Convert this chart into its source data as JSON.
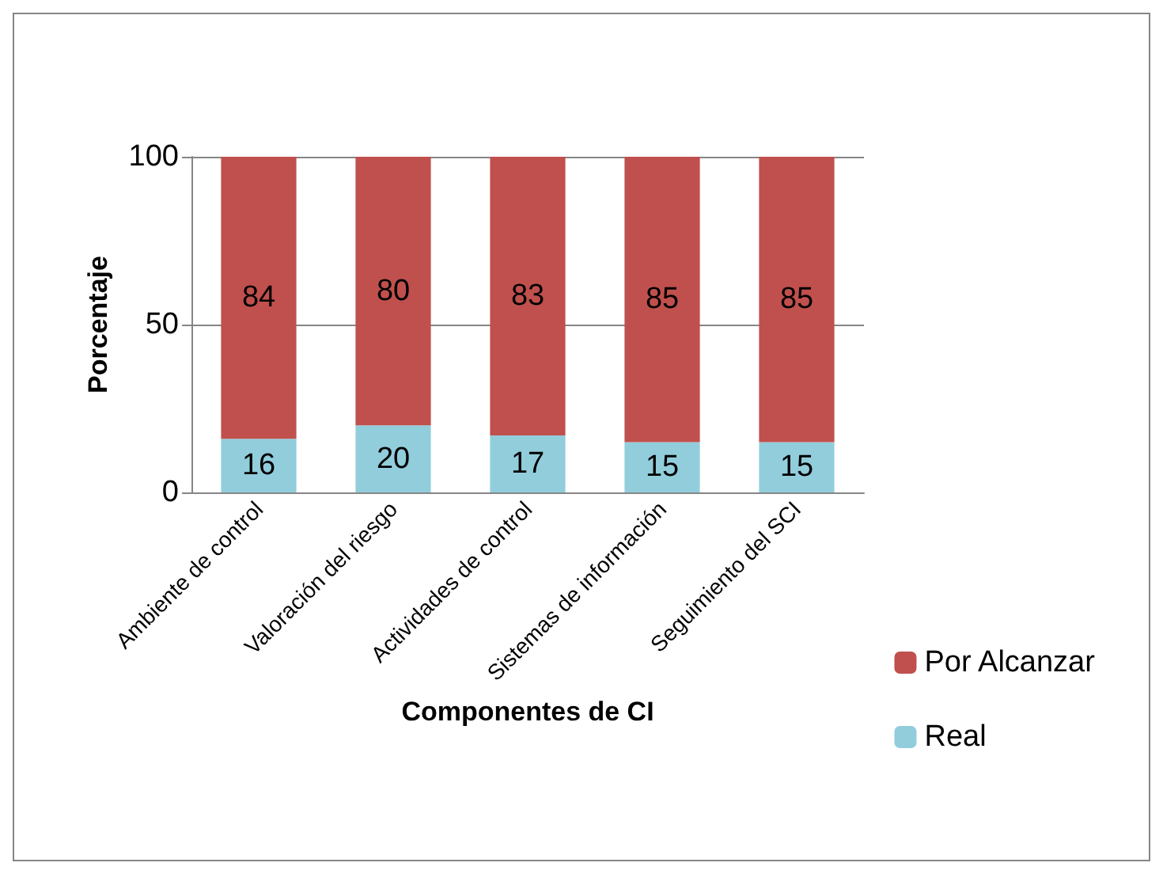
{
  "chart_data": {
    "type": "bar",
    "stacked": true,
    "xlabel": "Componentes de CI",
    "ylabel": "Porcentaje",
    "categories": [
      "Ambiente de control",
      "Valoración del riesgo",
      "Actividades de control",
      "Sistemas de información",
      "Seguimiento del SCI"
    ],
    "series": [
      {
        "name": "Real",
        "color": "#92cddc",
        "values": [
          16,
          20,
          17,
          15,
          15
        ]
      },
      {
        "name": "Por Alcanzar",
        "color": "#c0504d",
        "values": [
          84,
          80,
          83,
          85,
          85
        ]
      }
    ],
    "ylim": [
      0,
      100
    ],
    "yticks": [
      0,
      50,
      100
    ],
    "grid": "y",
    "legend": "right",
    "data_labels": true
  }
}
